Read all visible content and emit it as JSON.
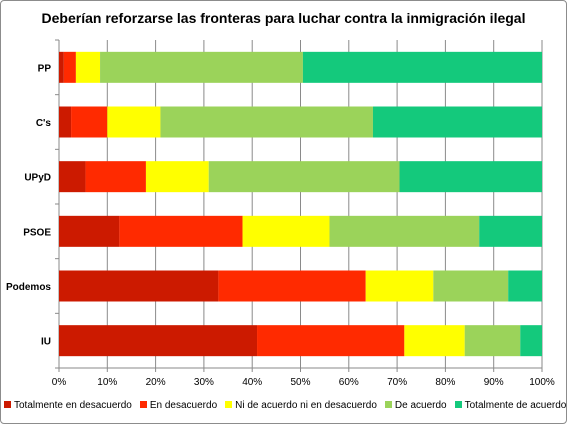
{
  "chart_data": {
    "type": "bar",
    "orientation": "horizontal",
    "stacked": true,
    "title": "Deberían reforzarse las fronteras para luchar contra la inmigración ilegal",
    "categories": [
      "PP",
      "C's",
      "UPyD",
      "PSOE",
      "Podemos",
      "IU"
    ],
    "series": [
      {
        "name": "Totalmente en desacuerdo",
        "color": "#cc1a00",
        "values": [
          1,
          2.5,
          5.5,
          12.5,
          33,
          41
        ]
      },
      {
        "name": "En desacuerdo",
        "color": "#ff2a00",
        "values": [
          2.5,
          7.5,
          12.5,
          25.5,
          30.5,
          30.5
        ]
      },
      {
        "name": "Ni de acuerdo ni en desacuerdo",
        "color": "#ffff00",
        "values": [
          5,
          11,
          13,
          18,
          14,
          12.5
        ]
      },
      {
        "name": "De acuerdo",
        "color": "#9bd35a",
        "values": [
          42,
          44,
          39.5,
          31,
          15.5,
          11.5
        ]
      },
      {
        "name": "Totalmente de acuerdo",
        "color": "#14c97c",
        "values": [
          49.5,
          35,
          29.5,
          13,
          7,
          4.5
        ]
      }
    ],
    "xlim": [
      0,
      100
    ],
    "xticks": [
      "0%",
      "10%",
      "20%",
      "30%",
      "40%",
      "50%",
      "60%",
      "70%",
      "80%",
      "90%",
      "100%"
    ],
    "grid": true,
    "legend_position": "bottom"
  }
}
